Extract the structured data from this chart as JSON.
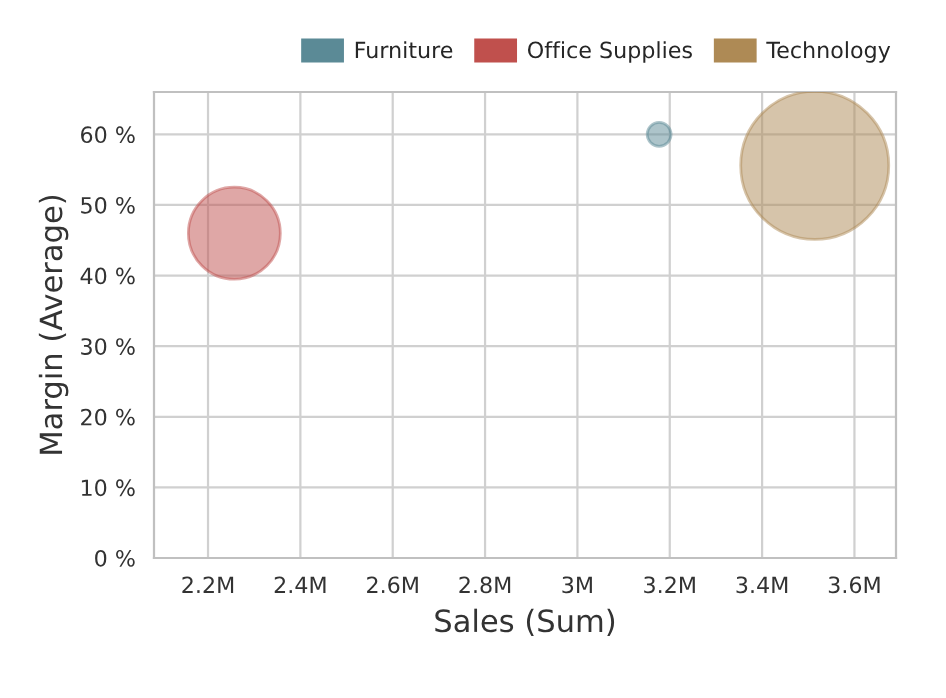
{
  "chart_data": {
    "type": "bubble",
    "xlabel": "Sales (Sum)",
    "ylabel": "Margin (Average)",
    "series": [
      {
        "name": "Furniture",
        "color": "#5b8a96",
        "x": [
          3177000
        ],
        "values": [
          60
        ],
        "sizes": [
          0.026
        ]
      },
      {
        "name": "Office Supplies",
        "color": "#c0504d",
        "x": [
          2257000
        ],
        "values": [
          46
        ],
        "sizes": [
          0.386
        ]
      },
      {
        "name": "Technology",
        "color": "#ae8a55",
        "x": [
          3514000
        ],
        "values": [
          55.6
        ],
        "sizes": [
          1
        ]
      }
    ],
    "xlim": [
      2083000,
      3690000
    ],
    "xticks": [
      {
        "value": 2200000,
        "label": "2.2M"
      },
      {
        "value": 2400000,
        "label": "2.4M"
      },
      {
        "value": 2600000,
        "label": "2.6M"
      },
      {
        "value": 2800000,
        "label": "2.8M"
      },
      {
        "value": 3000000,
        "label": "3M"
      },
      {
        "value": 3200000,
        "label": "3.2M"
      },
      {
        "value": 3400000,
        "label": "3.4M"
      },
      {
        "value": 3600000,
        "label": "3.6M"
      }
    ],
    "ylim": [
      0,
      66
    ],
    "yticks": [
      {
        "value": 0,
        "label": "0 %"
      },
      {
        "value": 10,
        "label": "10 %"
      },
      {
        "value": 20,
        "label": "20 %"
      },
      {
        "value": 30,
        "label": "30 %"
      },
      {
        "value": 40,
        "label": "40 %"
      },
      {
        "value": 50,
        "label": "50 %"
      },
      {
        "value": 60,
        "label": "60 %"
      }
    ],
    "grid": true,
    "legend": "top right"
  }
}
